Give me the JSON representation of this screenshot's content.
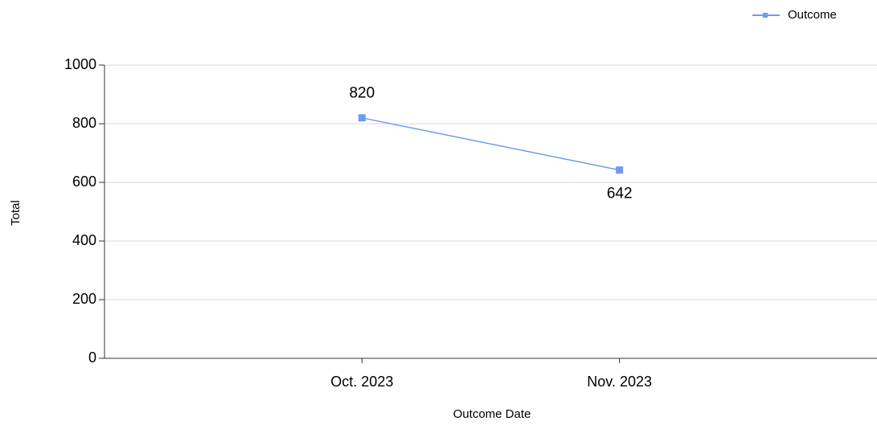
{
  "chart_data": {
    "type": "line",
    "categories": [
      "Oct. 2023",
      "Nov. 2023"
    ],
    "series": [
      {
        "name": "Outcome",
        "color": "#6f9af0",
        "values": [
          820,
          642
        ]
      }
    ],
    "ylim": [
      0,
      1000
    ],
    "yticks": [
      0,
      200,
      400,
      600,
      800,
      1000
    ],
    "x_label": "Outcome Date",
    "y_label": "Total",
    "grid": true,
    "legend": "top-right"
  }
}
